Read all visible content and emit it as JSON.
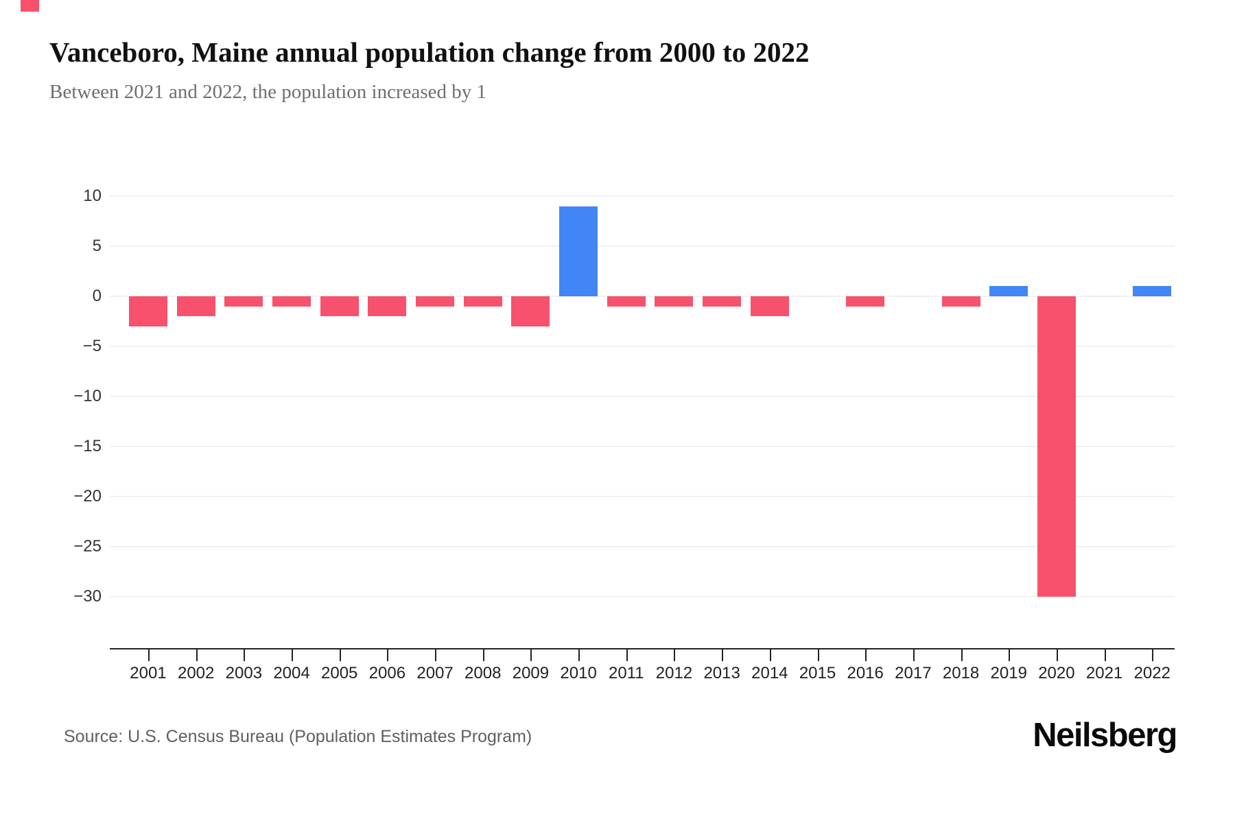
{
  "header": {
    "title": "Vanceboro, Maine annual population change from 2000 to 2022",
    "subtitle": "Between 2021 and 2022, the population increased by 1"
  },
  "footer": {
    "source": "Source: U.S. Census Bureau (Population Estimates Program)",
    "brand": "Neilsberg"
  },
  "chart_data": {
    "type": "bar",
    "title": "Vanceboro, Maine annual population change from 2000 to 2022",
    "subtitle": "Between 2021 and 2022, the population increased by 1",
    "categories": [
      "2001",
      "2002",
      "2003",
      "2004",
      "2005",
      "2006",
      "2007",
      "2008",
      "2009",
      "2010",
      "2011",
      "2012",
      "2013",
      "2014",
      "2015",
      "2016",
      "2017",
      "2018",
      "2019",
      "2020",
      "2021",
      "2022"
    ],
    "values": [
      -3,
      -2,
      -1,
      -1,
      -2,
      -2,
      -1,
      -1,
      -3,
      9,
      -1,
      -1,
      -1,
      -2,
      0,
      -1,
      0,
      -1,
      1,
      -30,
      0,
      1
    ],
    "xlabel": "",
    "ylabel": "",
    "ylim": [
      -30,
      10
    ],
    "yticks": [
      10,
      5,
      0,
      -5,
      -10,
      -15,
      -20,
      -25,
      -30
    ],
    "grid": true,
    "legend": false,
    "colors": {
      "positive": "#4285F4",
      "negative": "#F8516D",
      "zero_mark": "#ececec",
      "grid": "#f1f1f1",
      "axis": "#222222",
      "tick_label": "#333333",
      "title": "#111111",
      "subtitle": "#6e6e6e"
    }
  }
}
